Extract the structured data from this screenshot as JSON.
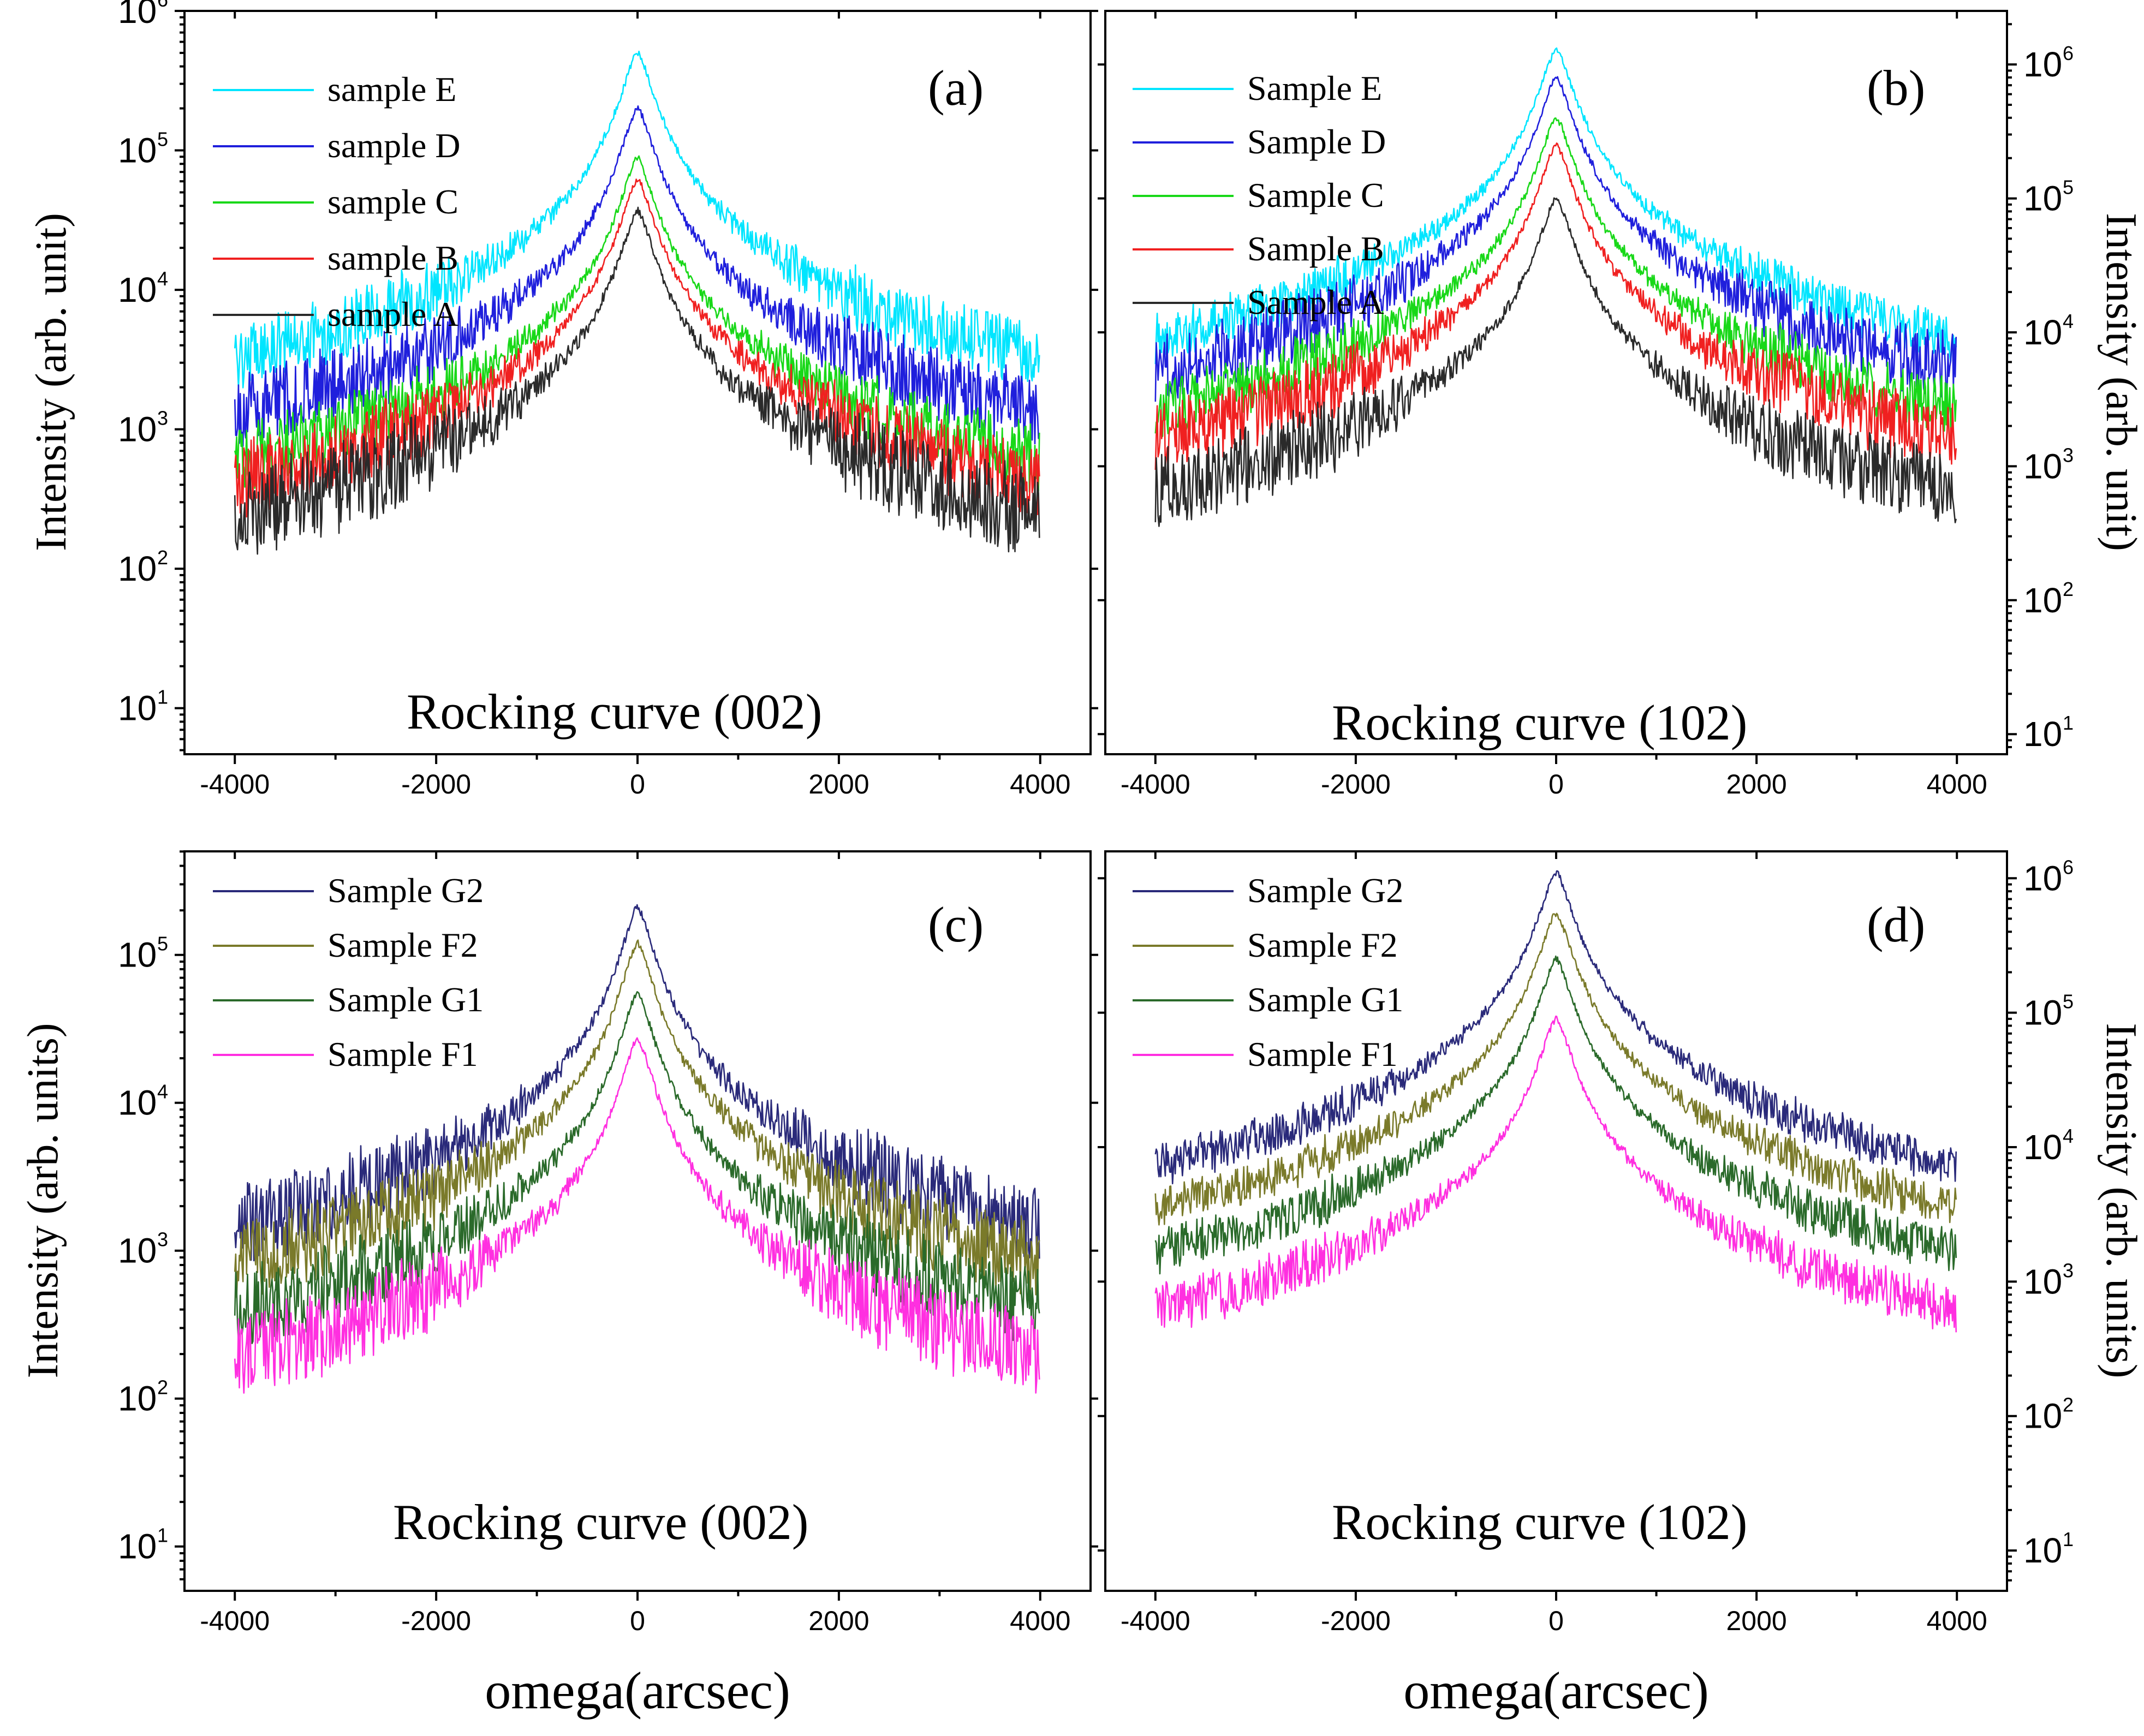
{
  "x_axis_title": "omega(arcsec)",
  "chart_data": [
    {
      "type": "line",
      "panel_label": "(a)",
      "annotation": "Rocking curve (002)",
      "ylabel": "Intensity (arb. unit)",
      "ylabel_side": "left",
      "xlabel": "omega(arcsec)",
      "xlim": [
        -4500,
        4500
      ],
      "ylim_log10": [
        0.67,
        6.0
      ],
      "yscale": "log",
      "x_ticks": [
        "-4000",
        "-2000",
        "0",
        "2000",
        "4000"
      ],
      "y_ticks": [
        1,
        2,
        3,
        4,
        5,
        6
      ],
      "legend_position": "top-left",
      "series": [
        {
          "name": "sample E",
          "color": "#00e5ff",
          "peak": 500000,
          "mid": 5000,
          "tail": 150,
          "noise": 0.13
        },
        {
          "name": "sample D",
          "color": "#1f1fdc",
          "peak": 200000,
          "mid": 2000,
          "tail": 50,
          "noise": 0.15
        },
        {
          "name": "sample C",
          "color": "#18d818",
          "peak": 88000,
          "mid": 1200,
          "tail": 28,
          "noise": 0.14
        },
        {
          "name": "sample B",
          "color": "#f02020",
          "peak": 62000,
          "mid": 800,
          "tail": 20,
          "noise": 0.15
        },
        {
          "name": "sample A",
          "color": "#2a2a2a",
          "peak": 37000,
          "mid": 350,
          "tail": 9,
          "noise": 0.18
        }
      ]
    },
    {
      "type": "line",
      "panel_label": "(b)",
      "annotation": "Rocking curve (102)",
      "ylabel": "Intensity (arb. unit)",
      "ylabel_side": "right",
      "xlabel": "omega(arcsec)",
      "xlim": [
        -4500,
        4500
      ],
      "ylim_log10": [
        0.85,
        6.4
      ],
      "yscale": "log",
      "x_ticks": [
        "-4000",
        "-2000",
        "0",
        "2000",
        "4000"
      ],
      "y_ticks": [
        1,
        2,
        3,
        4,
        5,
        6
      ],
      "legend_position": "top-left",
      "series": [
        {
          "name": "Sample E",
          "color": "#00e5ff",
          "peak": 1300000,
          "mid": 20000,
          "tail": 300,
          "noise": 0.1
        },
        {
          "name": "Sample D",
          "color": "#1f1fdc",
          "peak": 800000,
          "mid": 9000,
          "tail": 60,
          "noise": 0.14
        },
        {
          "name": "Sample C",
          "color": "#18d818",
          "peak": 400000,
          "mid": 5000,
          "tail": 40,
          "noise": 0.12
        },
        {
          "name": "Sample B",
          "color": "#f02020",
          "peak": 250000,
          "mid": 2500,
          "tail": 22,
          "noise": 0.14
        },
        {
          "name": "Sample A",
          "color": "#2a2a2a",
          "peak": 100000,
          "mid": 1200,
          "tail": 15,
          "noise": 0.16
        }
      ]
    },
    {
      "type": "line",
      "panel_label": "(c)",
      "annotation": "Rocking curve (002)",
      "ylabel": "Intensity (arb. units)",
      "ylabel_side": "left",
      "xlabel": "omega(arcsec)",
      "xlim": [
        -4500,
        4500
      ],
      "ylim_log10": [
        0.7,
        5.7
      ],
      "yscale": "log",
      "x_ticks": [
        "-4000",
        "-2000",
        "0",
        "2000",
        "4000"
      ],
      "y_ticks": [
        1,
        2,
        3,
        4,
        5
      ],
      "legend_position": "top-left",
      "series": [
        {
          "name": "Sample G2",
          "color": "#2a2a7a",
          "peak": 210000,
          "mid": 2500,
          "tail": 80,
          "noise": 0.15
        },
        {
          "name": "Sample F2",
          "color": "#7a7a2a",
          "peak": 120000,
          "mid": 1500,
          "tail": 40,
          "noise": 0.15
        },
        {
          "name": "Sample G1",
          "color": "#2a6a2a",
          "peak": 55000,
          "mid": 900,
          "tail": 20,
          "noise": 0.15
        },
        {
          "name": "Sample F1",
          "color": "#ff2fe0",
          "peak": 27000,
          "mid": 400,
          "tail": 10,
          "noise": 0.16
        }
      ]
    },
    {
      "type": "line",
      "panel_label": "(d)",
      "annotation": "Rocking curve (102)",
      "ylabel": "Intensity (arb. units)",
      "ylabel_side": "right",
      "xlabel": "omega(arcsec)",
      "xlim": [
        -4500,
        4500
      ],
      "ylim_log10": [
        0.7,
        6.2
      ],
      "yscale": "log",
      "x_ticks": [
        "-4000",
        "-2000",
        "0",
        "2000",
        "4000"
      ],
      "y_ticks": [
        1,
        2,
        3,
        4,
        5,
        6
      ],
      "legend_position": "top-left",
      "series": [
        {
          "name": "Sample G2",
          "color": "#2a2a7a",
          "peak": 1100000,
          "mid": 12000,
          "tail": 200,
          "noise": 0.08
        },
        {
          "name": "Sample F2",
          "color": "#7a7a2a",
          "peak": 550000,
          "mid": 5000,
          "tail": 60,
          "noise": 0.08
        },
        {
          "name": "Sample G1",
          "color": "#2a6a2a",
          "peak": 250000,
          "mid": 2800,
          "tail": 30,
          "noise": 0.09
        },
        {
          "name": "Sample F1",
          "color": "#ff2fe0",
          "peak": 90000,
          "mid": 1300,
          "tail": 12,
          "noise": 0.1
        }
      ]
    }
  ]
}
